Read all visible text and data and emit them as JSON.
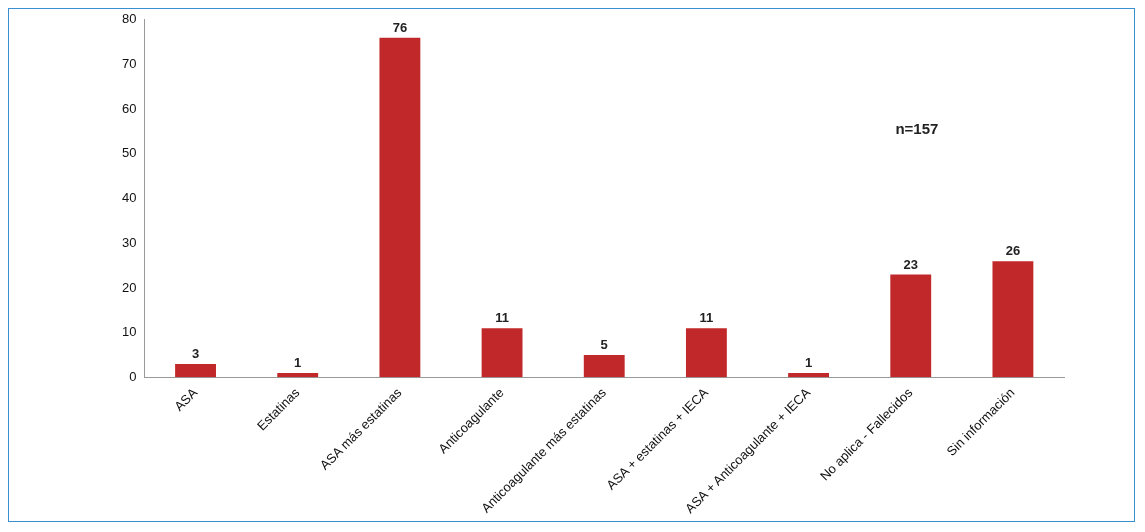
{
  "chart_data": {
    "type": "bar",
    "categories": [
      "ASA",
      "Estatinas",
      "ASA más estatinas",
      "Anticoagulante",
      "Anticoagulante más estatinas",
      "ASA + estatinas + IECA",
      "ASA + Anticoagulante + IECA",
      "No aplica - Fallecidos",
      "Sin información"
    ],
    "values": [
      3,
      1,
      76,
      11,
      5,
      11,
      1,
      23,
      26
    ],
    "color": "#c0282a",
    "ylim": [
      0,
      80
    ],
    "yticks": [
      0,
      10,
      20,
      30,
      40,
      50,
      60,
      70,
      80
    ],
    "grid": false,
    "legend": false,
    "data_labels": true,
    "annotations": [
      "n=157"
    ]
  }
}
